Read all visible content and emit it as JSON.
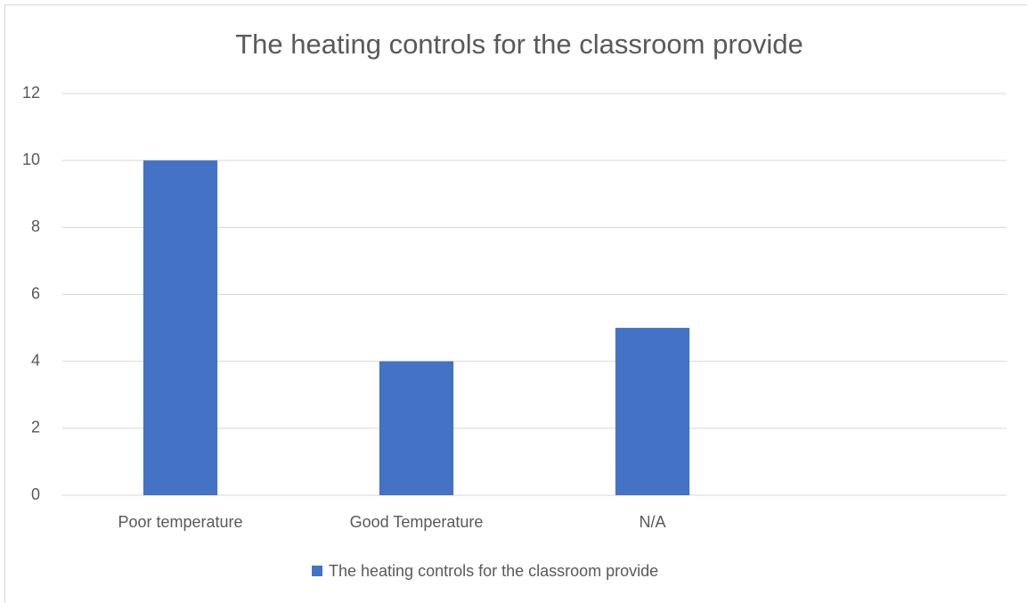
{
  "chart_data": {
    "type": "bar",
    "title": "The heating controls for the classroom provide",
    "categories": [
      "Poor temperature",
      "Good Temperature",
      "N/A",
      null
    ],
    "series": [
      {
        "name": "The heating controls for the classroom provide",
        "color": "#4472c4",
        "values": [
          10,
          4,
          5,
          null
        ]
      }
    ],
    "ylim": [
      0,
      12
    ],
    "yticks": [
      0,
      2,
      4,
      6,
      8,
      10,
      12
    ],
    "grid": true,
    "legend": "bottom"
  }
}
